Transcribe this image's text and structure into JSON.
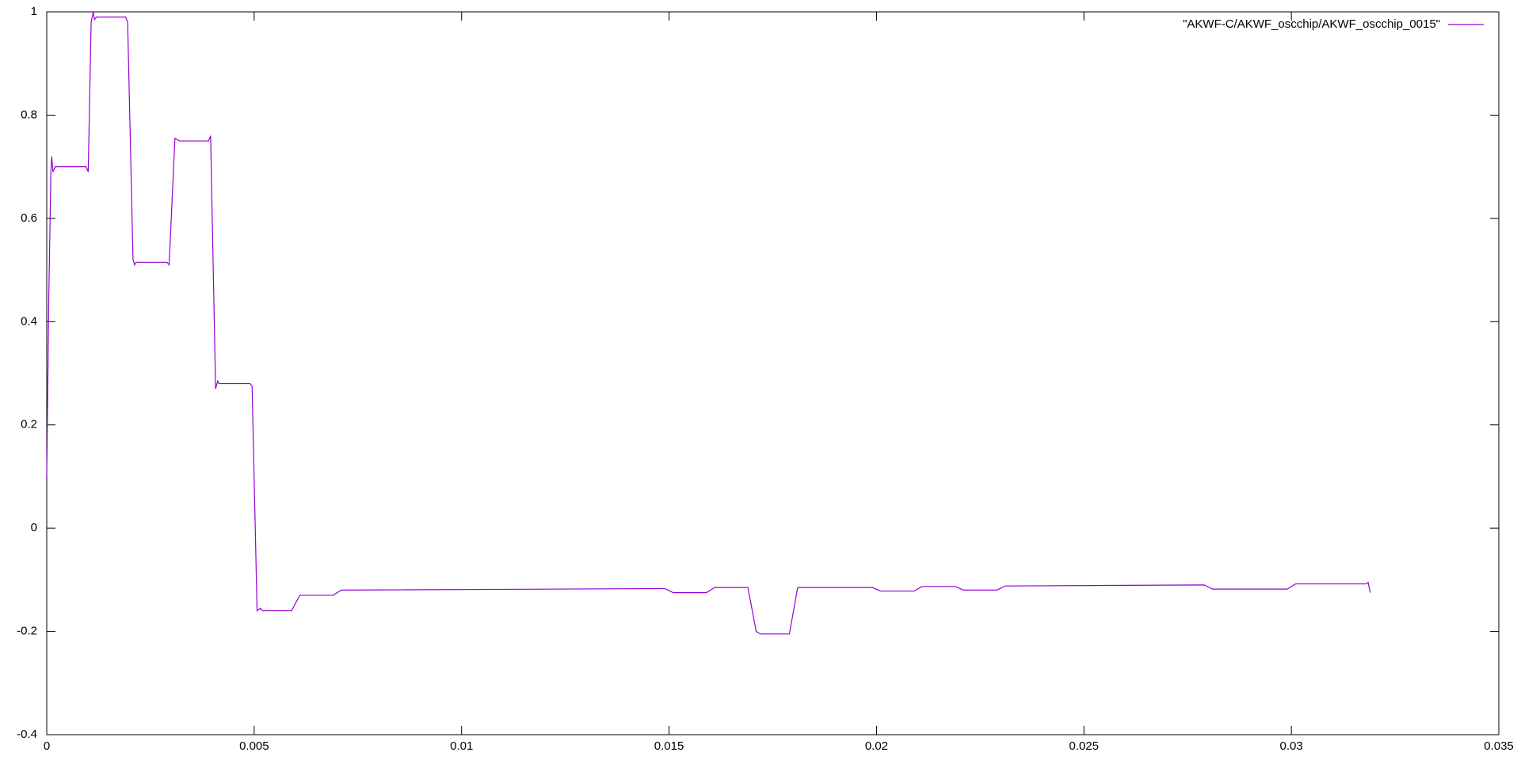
{
  "chart_data": {
    "type": "line",
    "x": [
      0,
      5e-05,
      0.0001,
      0.00012,
      0.00015,
      0.0002,
      0.00095,
      0.001,
      0.00107,
      0.00112,
      0.00115,
      0.0012,
      0.0019,
      0.00195,
      0.00208,
      0.00212,
      0.00215,
      0.0029,
      0.00295,
      0.00309,
      0.0032,
      0.0039,
      0.00395,
      0.00407,
      0.00412,
      0.00415,
      0.0049,
      0.00495,
      0.00507,
      0.00515,
      0.0052,
      0.0059,
      0.0061,
      0.0069,
      0.0071,
      0.0149,
      0.0151,
      0.0159,
      0.0161,
      0.0169,
      0.0171,
      0.0172,
      0.0179,
      0.0181,
      0.0199,
      0.0201,
      0.0209,
      0.0211,
      0.0219,
      0.0221,
      0.0229,
      0.0231,
      0.0279,
      0.0281,
      0.0299,
      0.0301,
      0.0318,
      0.03185,
      0.0319
    ],
    "series": [
      {
        "name": "\"AKWF-C/AKWF_oscchip/AKWF_oscchip_0015\"",
        "color": "#9400d3",
        "values": [
          0.1,
          0.45,
          0.69,
          0.72,
          0.69,
          0.7,
          0.7,
          0.69,
          0.98,
          1.0,
          0.985,
          0.99,
          0.99,
          0.98,
          0.52,
          0.51,
          0.515,
          0.515,
          0.51,
          0.755,
          0.75,
          0.75,
          0.76,
          0.27,
          0.285,
          0.28,
          0.28,
          0.275,
          -0.16,
          -0.155,
          -0.16,
          -0.16,
          -0.13,
          -0.13,
          -0.12,
          -0.117,
          -0.125,
          -0.125,
          -0.115,
          -0.115,
          -0.2,
          -0.205,
          -0.205,
          -0.115,
          -0.115,
          -0.122,
          -0.122,
          -0.113,
          -0.113,
          -0.12,
          -0.12,
          -0.112,
          -0.11,
          -0.118,
          -0.118,
          -0.108,
          -0.108,
          -0.105,
          -0.125
        ]
      }
    ],
    "xlim": [
      0,
      0.035
    ],
    "xticks": [
      0,
      0.005,
      0.01,
      0.015,
      0.02,
      0.025,
      0.03,
      0.035
    ],
    "ylim": [
      -0.4,
      1
    ],
    "yticks": [
      -0.4,
      -0.2,
      0,
      0.2,
      0.4,
      0.6,
      0.8,
      1
    ],
    "legend": "top-right",
    "grid": false
  }
}
